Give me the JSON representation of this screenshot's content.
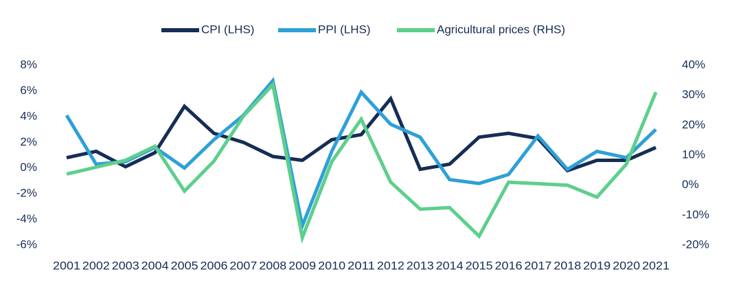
{
  "chart_data": {
    "type": "line",
    "categories": [
      "2001",
      "2002",
      "2003",
      "2004",
      "2005",
      "2006",
      "2007",
      "2008",
      "2009",
      "2010",
      "2011",
      "2012",
      "2013",
      "2014",
      "2015",
      "2016",
      "2017",
      "2018",
      "2019",
      "2020",
      "2021"
    ],
    "series": [
      {
        "name": "CPI (LHS)",
        "color": "#162d55",
        "values": [
          0.8,
          1.3,
          0.1,
          1.2,
          4.8,
          2.7,
          2.0,
          0.9,
          0.6,
          2.2,
          2.6,
          5.4,
          -0.1,
          0.3,
          2.4,
          2.7,
          2.3,
          -0.2,
          0.6,
          0.6,
          1.6
        ]
      },
      {
        "name": "PPI (LHS)",
        "color": "#2ea0d8",
        "values": [
          4.1,
          0.3,
          0.5,
          1.6,
          0.0,
          2.2,
          4.1,
          6.8,
          -4.5,
          1.3,
          5.9,
          3.4,
          2.4,
          -0.9,
          -1.2,
          -0.5,
          2.5,
          -0.1,
          1.3,
          0.8,
          3.0
        ]
      },
      {
        "name": "Agricultural prices (RHS)",
        "color": "#5ecf8c",
        "axis": "y2",
        "values": [
          3.7,
          6,
          8.3,
          13,
          -2,
          8,
          23,
          33.5,
          -17.5,
          7.8,
          22,
          1,
          -8,
          -7.5,
          -17,
          1,
          0.5,
          0,
          -4,
          7,
          31
        ]
      }
    ],
    "ylim": [
      -6,
      8
    ],
    "yticks": [
      {
        "value": -6,
        "label": "-6%"
      },
      {
        "value": -4,
        "label": "-4%"
      },
      {
        "value": -2,
        "label": "-2%"
      },
      {
        "value": 0,
        "label": "0%"
      },
      {
        "value": 2,
        "label": "2%"
      },
      {
        "value": 4,
        "label": "4%"
      },
      {
        "value": 6,
        "label": "6%"
      },
      {
        "value": 8,
        "label": "8%"
      }
    ],
    "y2lim": [
      -20,
      40
    ],
    "y2ticks": [
      {
        "value": -20,
        "label": "-20%"
      },
      {
        "value": -10,
        "label": "-10%"
      },
      {
        "value": 0,
        "label": "0%"
      },
      {
        "value": 10,
        "label": "10%"
      },
      {
        "value": 20,
        "label": "20%"
      },
      {
        "value": 30,
        "label": "30%"
      },
      {
        "value": 40,
        "label": "40%"
      }
    ],
    "grid": false
  }
}
